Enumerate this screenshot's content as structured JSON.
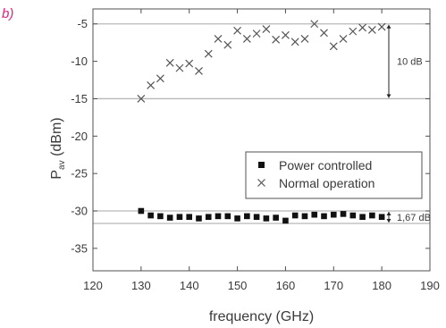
{
  "panel_label": "b)",
  "colors": {
    "accent": "#e0247e",
    "ink": "#3a3a3a",
    "reference_line": "#b8b8b8"
  },
  "chart_data": {
    "type": "scatter",
    "xlabel": "frequency (GHz)",
    "ylabel_main": "P",
    "ylabel_sub": "av",
    "ylabel_unit": " (dBm)",
    "xlim": [
      120,
      190
    ],
    "ylim": [
      -38,
      -3
    ],
    "xticks": [
      120,
      130,
      140,
      150,
      160,
      170,
      180,
      190
    ],
    "yticks": [
      -35,
      -30,
      -25,
      -20,
      -15,
      -10,
      -5
    ],
    "grid": false,
    "legend_position": "center-right",
    "series": [
      {
        "name": "Normal operation",
        "marker": "x",
        "x": [
          130,
          132,
          134,
          136,
          138,
          140,
          142,
          144,
          146,
          148,
          150,
          152,
          154,
          156,
          158,
          160,
          162,
          164,
          166,
          168,
          170,
          172,
          174,
          176,
          178,
          180
        ],
        "y": [
          -15.0,
          -13.2,
          -12.3,
          -10.2,
          -10.9,
          -10.3,
          -11.3,
          -9.0,
          -7.0,
          -7.8,
          -5.9,
          -7.0,
          -6.3,
          -5.7,
          -7.1,
          -6.5,
          -7.4,
          -7.0,
          -5.0,
          -6.2,
          -8.0,
          -7.0,
          -6.0,
          -5.5,
          -5.8,
          -5.4
        ]
      },
      {
        "name": "Power controlled",
        "marker": "square",
        "x": [
          130,
          132,
          134,
          136,
          138,
          140,
          142,
          144,
          146,
          148,
          150,
          152,
          154,
          156,
          158,
          160,
          162,
          164,
          166,
          168,
          170,
          172,
          174,
          176,
          178,
          180
        ],
        "y": [
          -30.0,
          -30.6,
          -30.7,
          -30.9,
          -30.8,
          -30.8,
          -31.0,
          -30.8,
          -30.7,
          -30.7,
          -31.0,
          -30.7,
          -30.8,
          -31.0,
          -30.9,
          -31.3,
          -30.6,
          -30.7,
          -30.5,
          -30.7,
          -30.5,
          -30.4,
          -30.6,
          -30.8,
          -30.6,
          -30.8
        ]
      }
    ],
    "reference_lines": [
      -5,
      -15,
      -30,
      -31.67
    ],
    "annotations": [
      {
        "text": "10 dB",
        "from": -5,
        "to": -15
      },
      {
        "text": "1,67 dB",
        "from": -30,
        "to": -31.67
      }
    ]
  }
}
